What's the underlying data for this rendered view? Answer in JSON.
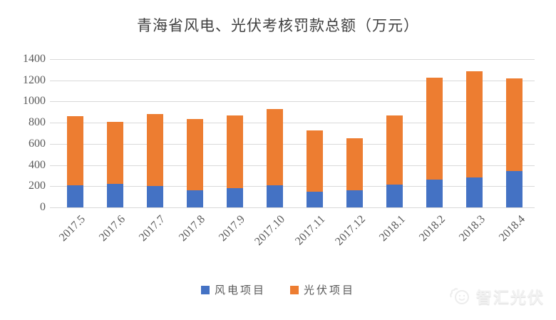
{
  "title": "青海省风电、光伏考核罚款总额（万元）",
  "chart_data": {
    "type": "bar",
    "stacked": true,
    "title": "青海省风电、光伏考核罚款总额（万元）",
    "categories": [
      "2017.5",
      "2017.6",
      "2017.7",
      "2017.8",
      "2017.9",
      "2017.10",
      "2017.11",
      "2017.12",
      "2018.1",
      "2018.2",
      "2018.3",
      "2018.4"
    ],
    "series": [
      {
        "name": "风电项目",
        "color": "#4472c4",
        "values": [
          210,
          220,
          205,
          160,
          180,
          210,
          145,
          160,
          215,
          260,
          285,
          345
        ]
      },
      {
        "name": "光伏项目",
        "color": "#ed7d31",
        "values": [
          650,
          585,
          680,
          675,
          690,
          720,
          585,
          490,
          655,
          965,
          1000,
          875
        ]
      }
    ],
    "totals": [
      860,
      805,
      885,
      835,
      870,
      930,
      730,
      650,
      870,
      1225,
      1285,
      1220
    ],
    "ylim": [
      0,
      1400
    ],
    "ytick_step": 200,
    "ytick_labels": [
      "0",
      "200",
      "400",
      "600",
      "800",
      "1000",
      "1200",
      "1400"
    ],
    "grid": true,
    "legend_position": "bottom"
  },
  "legend": {
    "items": [
      {
        "label": "风电项目",
        "color": "#4472c4"
      },
      {
        "label": "光伏项目",
        "color": "#ed7d31"
      }
    ]
  },
  "watermark": {
    "text": "智汇光伏",
    "icon": "smiley-face-logo-icon"
  },
  "colors": {
    "wind_blue": "#4472c4",
    "pv_orange": "#ed7d31",
    "gridline": "#d9d9d9",
    "axis_text": "#595959",
    "title_text": "#3f3f3f",
    "background": "#ffffff"
  }
}
